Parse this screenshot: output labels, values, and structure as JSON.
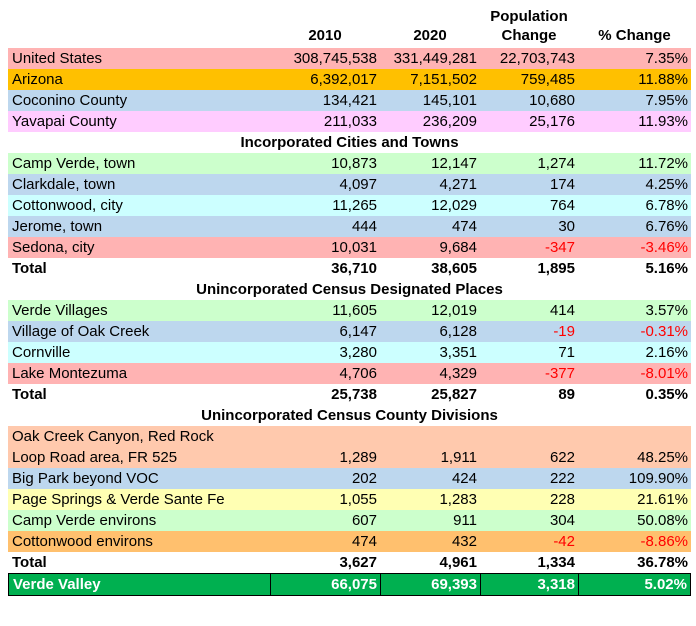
{
  "colors": {
    "negative": "#ff0000",
    "grand_text": "#ffffff",
    "grand_bg": "#00b050",
    "text": "#000000",
    "background": "#ffffff"
  },
  "chart_data": {
    "type": "table",
    "header": {
      "year1": "2010",
      "year2": "2020",
      "change_line1": "Population",
      "change_line2": "Change",
      "pct": "% Change"
    },
    "rows": [
      {
        "type": "data",
        "label": "United States",
        "bg": "#ffb3b3",
        "values": [
          "308,745,538",
          "331,449,281",
          "22,703,743",
          "7.35%"
        ]
      },
      {
        "type": "data",
        "label": "Arizona",
        "bg": "#ffc000",
        "values": [
          "6,392,017",
          "7,151,502",
          "759,485",
          "11.88%"
        ]
      },
      {
        "type": "data",
        "label": "Coconino County",
        "bg": "#bdd7ee",
        "values": [
          "134,421",
          "145,101",
          "10,680",
          "7.95%"
        ]
      },
      {
        "type": "data",
        "label": "Yavapai County",
        "bg": "#ffccff",
        "values": [
          "211,033",
          "236,209",
          "25,176",
          "11.93%"
        ]
      },
      {
        "type": "section",
        "label": "Incorporated Cities and Towns"
      },
      {
        "type": "data",
        "label": "Camp Verde, town",
        "bg": "#ccffcc",
        "values": [
          "10,873",
          "12,147",
          "1,274",
          "11.72%"
        ]
      },
      {
        "type": "data",
        "label": "Clarkdale, town",
        "bg": "#bdd7ee",
        "values": [
          "4,097",
          "4,271",
          "174",
          "4.25%"
        ]
      },
      {
        "type": "data",
        "label": "Cottonwood, city",
        "bg": "#ccffff",
        "values": [
          "11,265",
          "12,029",
          "764",
          "6.78%"
        ]
      },
      {
        "type": "data",
        "label": "Jerome, town",
        "bg": "#bdd7ee",
        "values": [
          "444",
          "474",
          "30",
          "6.76%"
        ]
      },
      {
        "type": "data",
        "label": "Sedona, city",
        "bg": "#ffb3b3",
        "values": [
          "10,031",
          "9,684",
          "-347",
          "-3.46%"
        ]
      },
      {
        "type": "total",
        "label": "Total",
        "values": [
          "36,710",
          "38,605",
          "1,895",
          "5.16%"
        ]
      },
      {
        "type": "section",
        "label": "Unincorporated Census Designated Places"
      },
      {
        "type": "data",
        "label": "Verde Villages",
        "bg": "#ccffcc",
        "values": [
          "11,605",
          "12,019",
          "414",
          "3.57%"
        ]
      },
      {
        "type": "data",
        "label": "Village of Oak Creek",
        "bg": "#bdd7ee",
        "values": [
          "6,147",
          "6,128",
          "-19",
          "-0.31%"
        ]
      },
      {
        "type": "data",
        "label": "Cornville",
        "bg": "#ccffff",
        "values": [
          "3,280",
          "3,351",
          "71",
          "2.16%"
        ]
      },
      {
        "type": "data",
        "label": "Lake Montezuma",
        "bg": "#ffb3b3",
        "values": [
          "4,706",
          "4,329",
          "-377",
          "-8.01%"
        ]
      },
      {
        "type": "total",
        "label": "Total",
        "values": [
          "25,738",
          "25,827",
          "89",
          "0.35%"
        ]
      },
      {
        "type": "section",
        "label": "Unincorporated Census County Divisions"
      },
      {
        "type": "data",
        "tall": true,
        "label": "Oak Creek Canyon, Red Rock\nLoop Road area, FR 525",
        "bg": "#ffc9ad",
        "values": [
          "1,289",
          "1,911",
          "622",
          "48.25%"
        ]
      },
      {
        "type": "data",
        "label": "Big Park beyond VOC",
        "bg": "#bdd7ee",
        "values": [
          "202",
          "424",
          "222",
          "109.90%"
        ]
      },
      {
        "type": "data",
        "label": "Page Springs & Verde Sante Fe",
        "bg": "#ffffb3",
        "values": [
          "1,055",
          "1,283",
          "228",
          "21.61%"
        ]
      },
      {
        "type": "data",
        "label": "Camp Verde environs",
        "bg": "#ccffcc",
        "values": [
          "607",
          "911",
          "304",
          "50.08%"
        ]
      },
      {
        "type": "data",
        "label": "Cottonwood environs",
        "bg": "#ffc06e",
        "values": [
          "474",
          "432",
          "-42",
          "-8.86%"
        ]
      },
      {
        "type": "total",
        "label": "Total",
        "values": [
          "3,627",
          "4,961",
          "1,334",
          "36.78%"
        ]
      },
      {
        "type": "grand",
        "label": "Verde Valley",
        "bg": "#00b050",
        "values": [
          "66,075",
          "69,393",
          "3,318",
          "5.02%"
        ]
      }
    ]
  }
}
